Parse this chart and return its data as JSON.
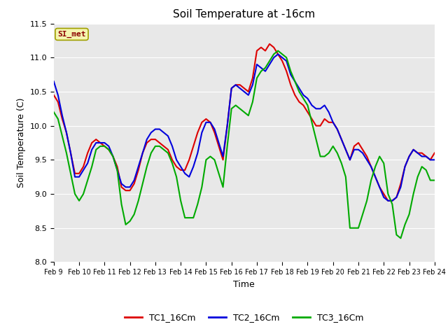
{
  "title": "Soil Temperature at -16cm",
  "xlabel": "Time",
  "ylabel": "Soil Temperature (C)",
  "ylim": [
    8.0,
    11.5
  ],
  "xlim": [
    0,
    360
  ],
  "fig_bg_color": "#ffffff",
  "plot_bg_color": "#e8e8e8",
  "legend_label": "SI_met",
  "x_tick_labels": [
    "Feb 9",
    "Feb 10",
    "Feb 11",
    "Feb 12",
    "Feb 13",
    "Feb 14",
    "Feb 15",
    "Feb 16",
    "Feb 17",
    "Feb 18",
    "Feb 19",
    "Feb 20",
    "Feb 21",
    "Feb 22",
    "Feb 23",
    "Feb 24"
  ],
  "x_tick_positions": [
    0,
    24,
    48,
    72,
    96,
    120,
    144,
    168,
    192,
    216,
    240,
    264,
    288,
    312,
    336,
    360
  ],
  "series": {
    "TC1_16Cm": {
      "color": "#dd0000",
      "x": [
        0,
        4,
        8,
        12,
        16,
        20,
        24,
        28,
        32,
        36,
        40,
        44,
        48,
        52,
        56,
        60,
        64,
        68,
        72,
        76,
        80,
        84,
        88,
        92,
        96,
        100,
        104,
        108,
        112,
        116,
        120,
        124,
        128,
        132,
        136,
        140,
        144,
        148,
        152,
        156,
        160,
        164,
        168,
        172,
        176,
        180,
        184,
        188,
        192,
        196,
        200,
        204,
        208,
        212,
        216,
        220,
        224,
        228,
        232,
        236,
        240,
        244,
        248,
        252,
        256,
        260,
        264,
        268,
        272,
        276,
        280,
        284,
        288,
        292,
        296,
        300,
        304,
        308,
        312,
        316,
        320,
        324,
        328,
        332,
        336,
        340,
        344,
        348,
        352,
        356,
        360
      ],
      "y": [
        10.45,
        10.35,
        10.1,
        9.9,
        9.6,
        9.3,
        9.3,
        9.4,
        9.6,
        9.75,
        9.8,
        9.75,
        9.7,
        9.65,
        9.55,
        9.4,
        9.1,
        9.05,
        9.05,
        9.15,
        9.35,
        9.6,
        9.75,
        9.8,
        9.8,
        9.75,
        9.7,
        9.65,
        9.5,
        9.4,
        9.35,
        9.35,
        9.5,
        9.7,
        9.9,
        10.05,
        10.1,
        10.05,
        9.9,
        9.7,
        9.5,
        10.0,
        10.55,
        10.6,
        10.6,
        10.55,
        10.5,
        10.7,
        11.1,
        11.15,
        11.1,
        11.2,
        11.15,
        11.05,
        10.95,
        10.8,
        10.6,
        10.45,
        10.35,
        10.3,
        10.2,
        10.1,
        10.0,
        10.0,
        10.1,
        10.05,
        10.05,
        9.95,
        9.8,
        9.65,
        9.5,
        9.7,
        9.75,
        9.65,
        9.55,
        9.4,
        9.25,
        9.1,
        9.0,
        8.9,
        8.9,
        8.95,
        9.15,
        9.4,
        9.55,
        9.65,
        9.6,
        9.6,
        9.55,
        9.5,
        9.6
      ]
    },
    "TC2_16Cm": {
      "color": "#0000dd",
      "x": [
        0,
        4,
        8,
        12,
        16,
        20,
        24,
        28,
        32,
        36,
        40,
        44,
        48,
        52,
        56,
        60,
        64,
        68,
        72,
        76,
        80,
        84,
        88,
        92,
        96,
        100,
        104,
        108,
        112,
        116,
        120,
        124,
        128,
        132,
        136,
        140,
        144,
        148,
        152,
        156,
        160,
        164,
        168,
        172,
        176,
        180,
        184,
        188,
        192,
        196,
        200,
        204,
        208,
        212,
        216,
        220,
        224,
        228,
        232,
        236,
        240,
        244,
        248,
        252,
        256,
        260,
        264,
        268,
        272,
        276,
        280,
        284,
        288,
        292,
        296,
        300,
        304,
        308,
        312,
        316,
        320,
        324,
        328,
        332,
        336,
        340,
        344,
        348,
        352,
        356,
        360
      ],
      "y": [
        10.65,
        10.45,
        10.15,
        9.9,
        9.6,
        9.25,
        9.25,
        9.35,
        9.45,
        9.65,
        9.75,
        9.75,
        9.75,
        9.7,
        9.55,
        9.35,
        9.15,
        9.1,
        9.1,
        9.2,
        9.4,
        9.6,
        9.8,
        9.9,
        9.95,
        9.95,
        9.9,
        9.85,
        9.7,
        9.5,
        9.4,
        9.3,
        9.25,
        9.4,
        9.6,
        9.9,
        10.05,
        10.05,
        9.95,
        9.75,
        9.55,
        10.0,
        10.55,
        10.6,
        10.55,
        10.5,
        10.45,
        10.6,
        10.9,
        10.85,
        10.8,
        10.9,
        11.0,
        11.05,
        11.0,
        10.95,
        10.75,
        10.65,
        10.55,
        10.45,
        10.4,
        10.3,
        10.25,
        10.25,
        10.3,
        10.2,
        10.05,
        9.95,
        9.8,
        9.65,
        9.5,
        9.65,
        9.65,
        9.6,
        9.5,
        9.4,
        9.25,
        9.1,
        8.95,
        8.9,
        8.9,
        8.95,
        9.1,
        9.4,
        9.55,
        9.65,
        9.6,
        9.55,
        9.55,
        9.5,
        9.5
      ]
    },
    "TC3_16Cm": {
      "color": "#00aa00",
      "x": [
        0,
        4,
        8,
        12,
        16,
        20,
        24,
        28,
        32,
        36,
        40,
        44,
        48,
        52,
        56,
        60,
        64,
        68,
        72,
        76,
        80,
        84,
        88,
        92,
        96,
        100,
        104,
        108,
        112,
        116,
        120,
        124,
        128,
        132,
        136,
        140,
        144,
        148,
        152,
        156,
        160,
        164,
        168,
        172,
        176,
        180,
        184,
        188,
        192,
        196,
        200,
        204,
        208,
        212,
        216,
        220,
        224,
        228,
        232,
        236,
        240,
        244,
        248,
        252,
        256,
        260,
        264,
        268,
        272,
        276,
        280,
        284,
        288,
        292,
        296,
        300,
        304,
        308,
        312,
        316,
        320,
        324,
        328,
        332,
        336,
        340,
        344,
        348,
        352,
        356,
        360
      ],
      "y": [
        10.2,
        10.1,
        9.85,
        9.6,
        9.3,
        9.0,
        8.9,
        9.0,
        9.2,
        9.4,
        9.65,
        9.7,
        9.7,
        9.65,
        9.55,
        9.35,
        8.85,
        8.55,
        8.6,
        8.7,
        8.9,
        9.15,
        9.4,
        9.6,
        9.7,
        9.7,
        9.65,
        9.6,
        9.45,
        9.25,
        8.9,
        8.65,
        8.65,
        8.65,
        8.85,
        9.1,
        9.5,
        9.55,
        9.5,
        9.3,
        9.1,
        9.7,
        10.25,
        10.3,
        10.25,
        10.2,
        10.15,
        10.35,
        10.7,
        10.8,
        10.85,
        10.95,
        11.05,
        11.1,
        11.05,
        11.0,
        10.8,
        10.65,
        10.5,
        10.4,
        10.3,
        10.05,
        9.8,
        9.55,
        9.55,
        9.6,
        9.7,
        9.6,
        9.45,
        9.25,
        8.5,
        8.5,
        8.5,
        8.7,
        8.9,
        9.2,
        9.4,
        9.55,
        9.45,
        9.0,
        8.85,
        8.4,
        8.35,
        8.55,
        8.7,
        9.0,
        9.25,
        9.4,
        9.35,
        9.2,
        9.2
      ]
    }
  }
}
